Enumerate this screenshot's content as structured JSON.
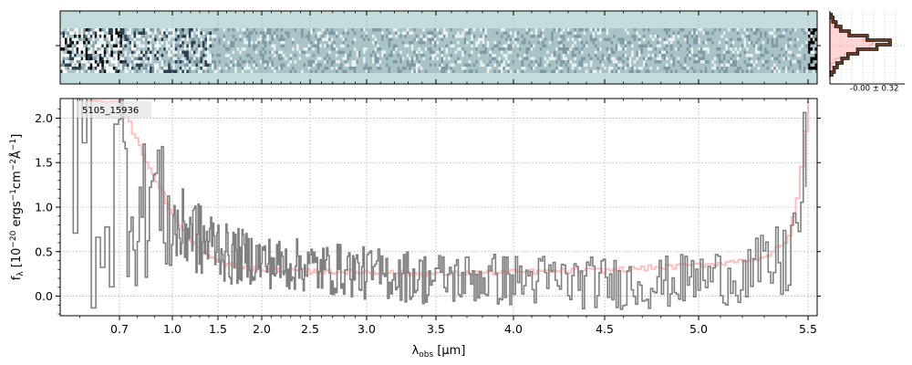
{
  "figure": {
    "object_label": "5105_15936",
    "histogram_stat": "-0.00 ± 0.32"
  },
  "chart_data": [
    {
      "type": "heatmap",
      "panel": "2D spectrum",
      "description_colors": {
        "background": "#c5dcdc",
        "dark": "#000000",
        "mid": "#7f9aa5",
        "light": "#ffffff"
      },
      "rows": 14,
      "ylim": [
        -1,
        1
      ],
      "yticks": [
        0
      ]
    },
    {
      "type": "area",
      "panel": "pixel histogram",
      "stat_label": "-0.00 ± 0.32",
      "gaussian": {
        "mean": 0.0,
        "sigma": 0.32
      },
      "bins_from_top": [
        0.02,
        0.05,
        0.1,
        0.18,
        0.32,
        0.62,
        1.0,
        0.78,
        0.46,
        0.3,
        0.2,
        0.12,
        0.07,
        0.03
      ],
      "colors": {
        "data": "#6b3a25",
        "model": "#ffb3b3"
      }
    },
    {
      "type": "line",
      "panel": "1D spectrum",
      "xlabel": "λobs [μm]",
      "ylabel": "fλ [10⁻²⁰ ergs⁻¹cm⁻²Å⁻¹]",
      "x_scale": "nonlinear (pixel)",
      "xticks": [
        0.7,
        1.0,
        1.5,
        2.0,
        2.5,
        3.0,
        3.5,
        4.0,
        4.5,
        5.0,
        5.5
      ],
      "xtick_labels": [
        "0.7",
        "1.0",
        "1.5",
        "2.0",
        "2.5",
        "3.0",
        "3.5",
        "4.0",
        "4.5",
        "5.0",
        "5.5"
      ],
      "xlim": [
        0.55,
        5.52
      ],
      "ylim": [
        -0.22,
        2.22
      ],
      "yticks": [
        0.0,
        0.5,
        1.0,
        1.5,
        2.0
      ],
      "ytick_labels": [
        "0.0",
        "0.5",
        "1.0",
        "1.5",
        "2.0"
      ],
      "grid": true,
      "series": [
        {
          "role": "data",
          "color": "#808080",
          "style": "steps",
          "x": [
            0.6,
            0.65,
            0.7,
            0.75,
            0.8,
            0.85,
            0.9,
            0.95,
            1.0,
            1.1,
            1.2,
            1.3,
            1.4,
            1.5,
            1.6,
            1.8,
            2.0,
            2.2,
            2.4,
            2.6,
            2.8,
            3.0,
            3.2,
            3.4,
            3.6,
            3.8,
            4.0,
            4.2,
            4.4,
            4.6,
            4.8,
            5.0,
            5.2,
            5.3,
            5.4,
            5.45,
            5.48
          ],
          "y": [
            1.9,
            0.8,
            1.5,
            1.2,
            0.9,
            1.0,
            1.3,
            0.9,
            0.8,
            0.7,
            0.8,
            0.6,
            0.6,
            0.6,
            0.45,
            0.45,
            0.4,
            0.35,
            0.35,
            0.3,
            0.3,
            0.25,
            0.25,
            0.2,
            0.2,
            0.2,
            0.18,
            0.18,
            0.15,
            0.15,
            0.15,
            0.2,
            0.25,
            0.3,
            0.4,
            0.8,
            1.4
          ],
          "scatter_amplitude": [
            1.6,
            1.4,
            1.2,
            1.0,
            0.9,
            0.8,
            0.75,
            0.7,
            0.6,
            0.5,
            0.45,
            0.45,
            0.4,
            0.35,
            0.35,
            0.3,
            0.3,
            0.3,
            0.3,
            0.3,
            0.3,
            0.3,
            0.3,
            0.3,
            0.3,
            0.3,
            0.3,
            0.3,
            0.3,
            0.3,
            0.3,
            0.3,
            0.35,
            0.4,
            0.5,
            0.6,
            0.8
          ]
        },
        {
          "role": "model",
          "color": "#ffb3b3",
          "style": "steps",
          "x": [
            0.7,
            0.8,
            0.9,
            1.0,
            1.2,
            1.4,
            1.6,
            2.0,
            2.5,
            3.0,
            3.5,
            4.0,
            4.5,
            5.0,
            5.2,
            5.3,
            5.4,
            5.45,
            5.5
          ],
          "y": [
            2.2,
            1.7,
            1.3,
            0.9,
            0.6,
            0.45,
            0.35,
            0.3,
            0.28,
            0.27,
            0.25,
            0.27,
            0.29,
            0.35,
            0.4,
            0.45,
            0.6,
            1.2,
            2.2
          ]
        }
      ]
    }
  ]
}
